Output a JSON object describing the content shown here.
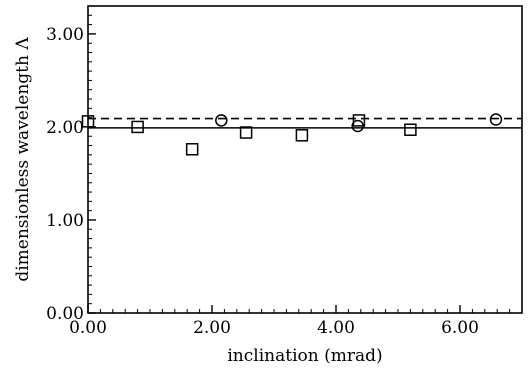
{
  "chart_data": {
    "type": "scatter",
    "title": "",
    "xlabel": "inclination (mrad)",
    "ylabel": "dimensionless wavelength Λ",
    "xlim": [
      0.0,
      7.0
    ],
    "ylim": [
      0.0,
      3.3
    ],
    "x_ticks": [
      0.0,
      2.0,
      4.0,
      6.0
    ],
    "y_ticks": [
      0.0,
      1.0,
      2.0,
      3.0
    ],
    "x_tick_labels": [
      "0.00",
      "2.00",
      "4.00",
      "6.00"
    ],
    "y_tick_labels": [
      "0.00",
      "1.00",
      "2.00",
      "3.00"
    ],
    "grid": false,
    "legend": "none",
    "series": [
      {
        "marker": "square",
        "x": [
          0.0,
          0.8,
          1.68,
          2.55,
          3.45,
          4.37,
          5.2
        ],
        "y": [
          2.06,
          2.0,
          1.76,
          1.94,
          1.91,
          2.07,
          1.97
        ]
      },
      {
        "marker": "circle",
        "x": [
          2.15,
          4.35,
          6.58
        ],
        "y": [
          2.07,
          2.01,
          2.08
        ]
      }
    ],
    "reference_lines": [
      {
        "style": "solid",
        "y": 1.99
      },
      {
        "style": "dashed",
        "y": 2.09
      }
    ]
  }
}
